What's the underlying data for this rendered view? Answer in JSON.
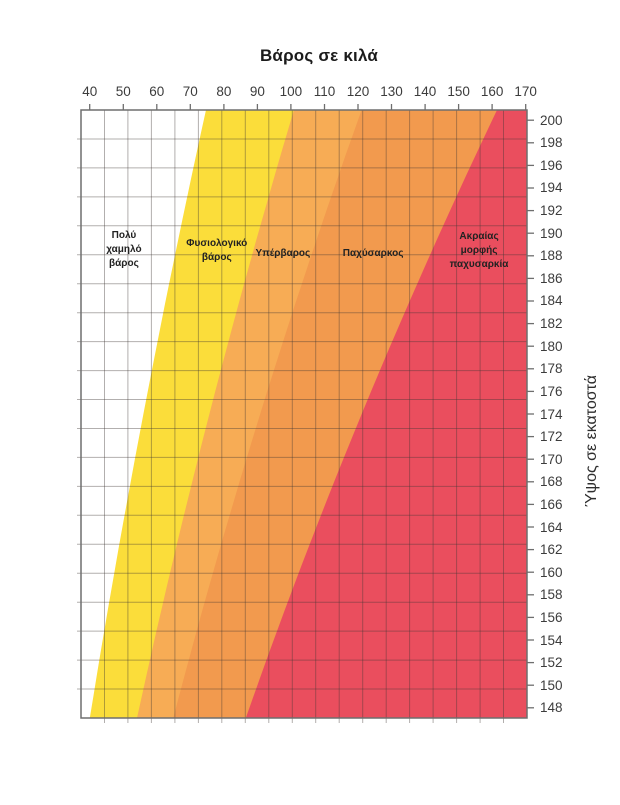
{
  "page": {
    "background": "#ffffff"
  },
  "chart_data": {
    "type": "area",
    "title": "Βάρος σε κιλά",
    "xlabel": "Βάρος σε κιλά",
    "ylabel": "Ύψος σε εκατοστά",
    "x_axis": {
      "position": "top",
      "unit": "kg",
      "ticks": [
        40,
        50,
        60,
        70,
        80,
        90,
        100,
        110,
        120,
        130,
        140,
        150,
        160,
        170
      ],
      "range": [
        37.4,
        170.4
      ]
    },
    "y_axis": {
      "position": "right",
      "unit": "cm",
      "ticks": [
        200,
        198,
        196,
        194,
        192,
        190,
        188,
        186,
        184,
        182,
        180,
        178,
        176,
        174,
        172,
        170,
        168,
        166,
        164,
        162,
        160,
        158,
        156,
        154,
        152,
        150,
        148
      ],
      "range": [
        147.1,
        200.9
      ]
    },
    "zones": [
      {
        "name": "underweight",
        "label": "Πολύ χαμηλό βάρος",
        "label_lines": [
          "Πολύ",
          "χαμηλό",
          "βάρος"
        ],
        "bmi_range": [
          null,
          18.5
        ],
        "color": "#FFFFFF",
        "label_anchor": {
          "weight_kg": 50.2,
          "height_cm": 188.5
        }
      },
      {
        "name": "normal-weight",
        "label": "Φυσιολογικό βάρος",
        "label_lines": [
          "Φυσιολογικό",
          "βάρος"
        ],
        "bmi_range": [
          18.5,
          25
        ],
        "color": "#FBDD3A",
        "label_anchor": {
          "weight_kg": 77.9,
          "height_cm": 188.4
        }
      },
      {
        "name": "overweight",
        "label": "Υπέρβαρος",
        "label_lines": [
          "Υπέρβαρος"
        ],
        "bmi_range": [
          25,
          30
        ],
        "color": "#F7AC55",
        "label_anchor": {
          "weight_kg": 97.6,
          "height_cm": 188.2
        }
      },
      {
        "name": "obese",
        "label": "Παχύσαρκος",
        "label_lines": [
          "Παχύσαρκος"
        ],
        "bmi_range": [
          30,
          40
        ],
        "color": "#F29A4E",
        "label_anchor": {
          "weight_kg": 124.5,
          "height_cm": 188.2
        }
      },
      {
        "name": "extreme-obesity",
        "label": "Ακραίας μορφής παχυσαρκία",
        "label_lines": [
          "Ακραίας",
          "μορφής",
          "παχυσαρκία"
        ],
        "bmi_range": [
          40,
          null
        ],
        "color": "#EA4E5E",
        "label_anchor": {
          "weight_kg": 156.1,
          "height_cm": 188.4
        }
      }
    ],
    "boundary_formula": "weight_kg = BMI × (height_cm / 100)²",
    "grid": {
      "on": true,
      "columns": 19,
      "rows": 21,
      "color": "rgba(62,55,53,0.40)"
    },
    "styles": {
      "axis_color": "#6e6e6e",
      "tick_label_color": "#3c3c3c",
      "title_color": "#1b1b1b",
      "zone_label_color": "#222222",
      "plot_background": "#FFFFFF"
    }
  }
}
